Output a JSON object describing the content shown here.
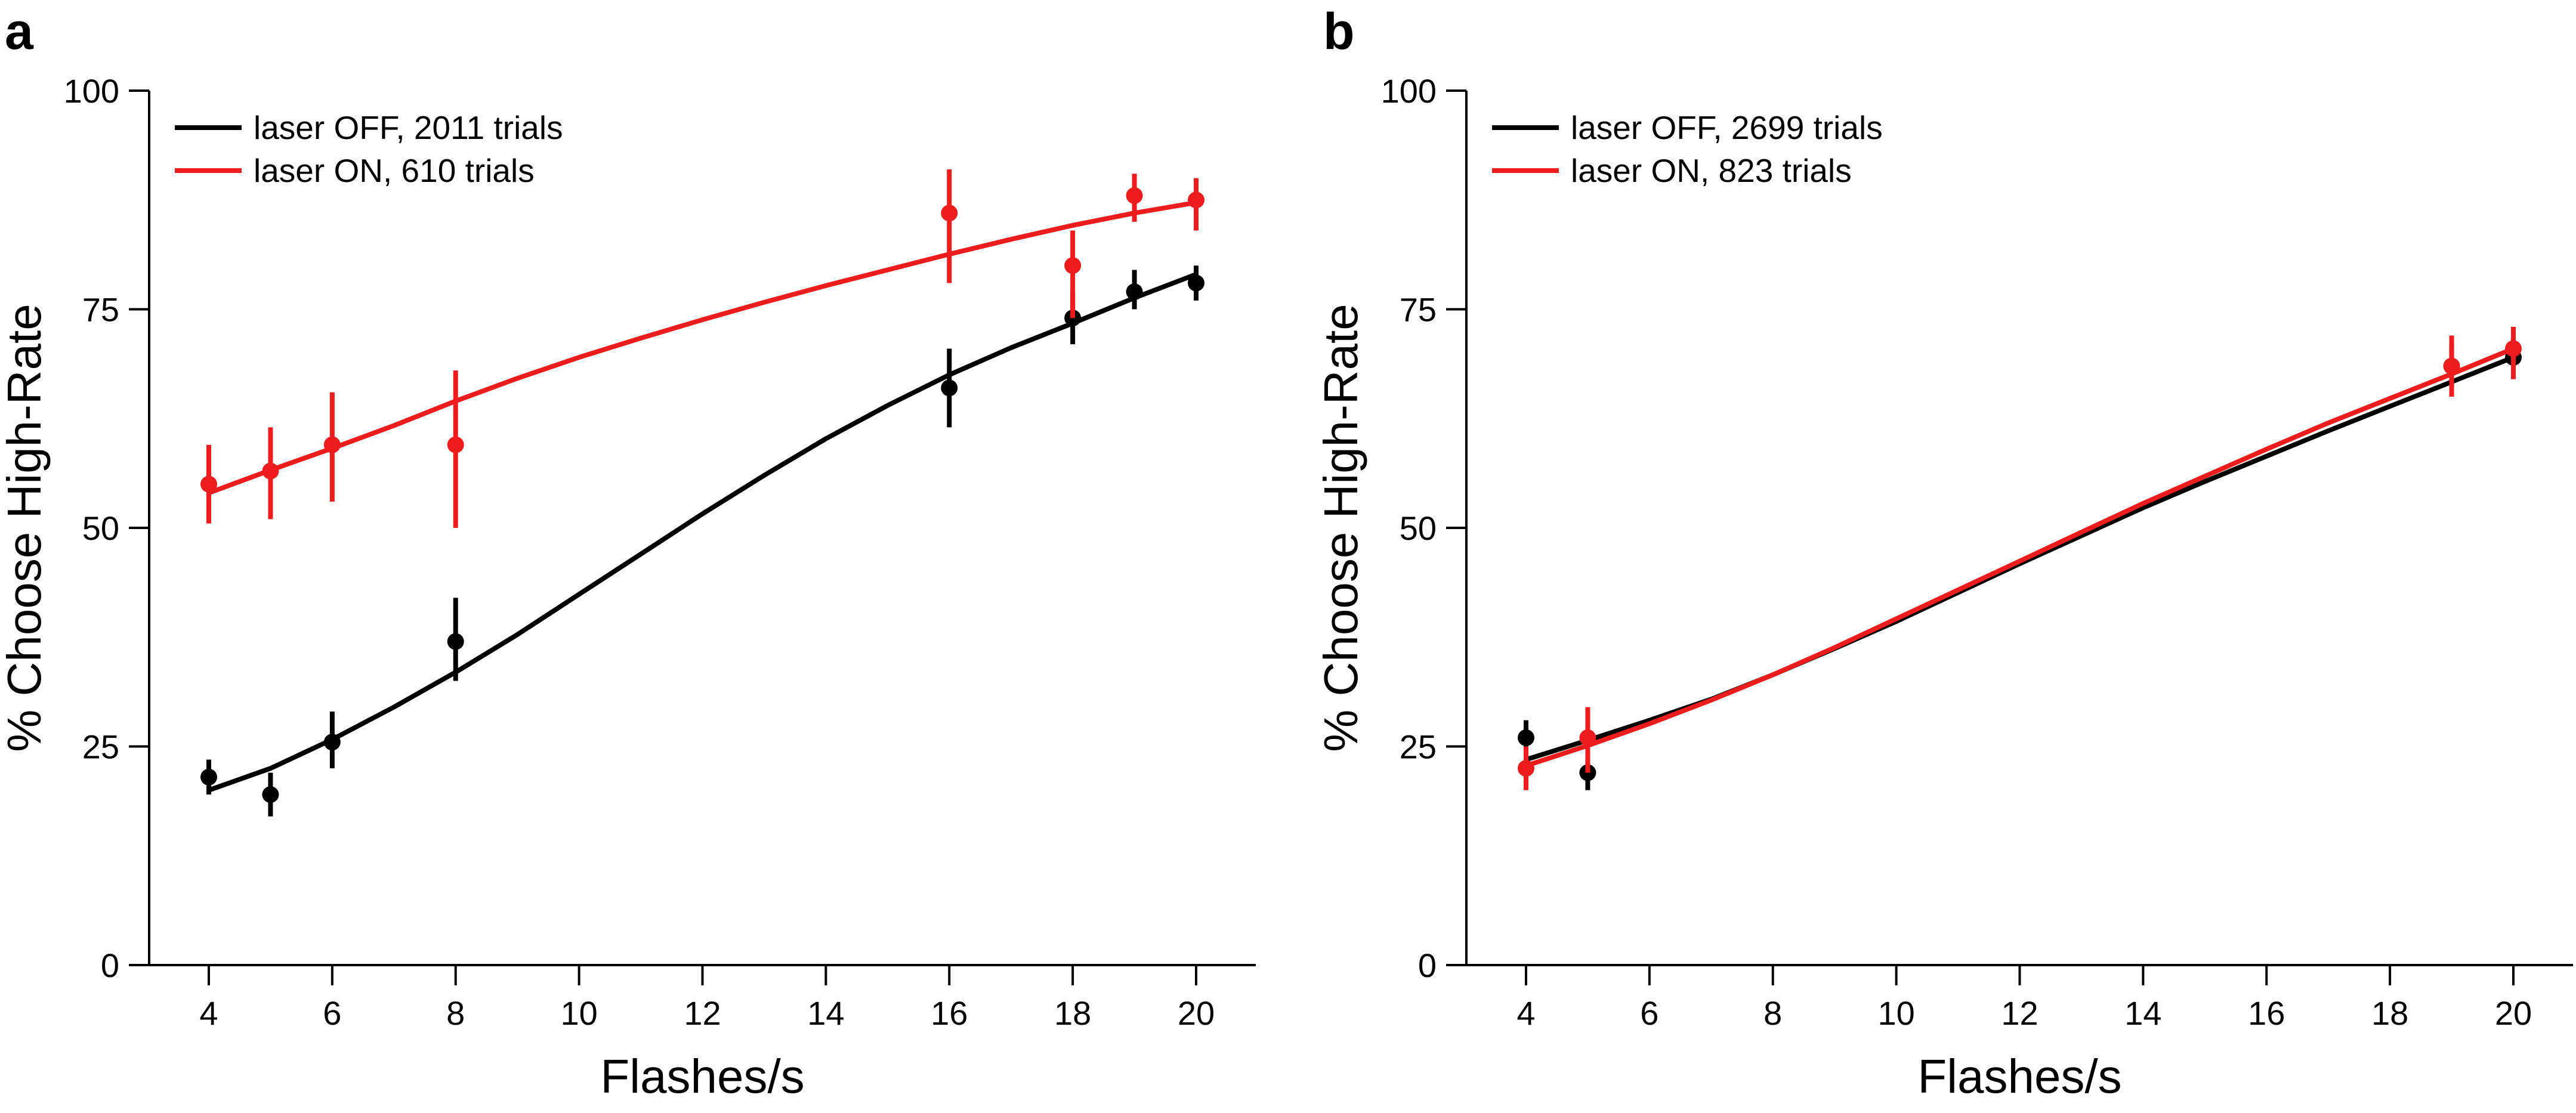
{
  "panels": [
    {
      "label": "a",
      "chart_data": {
        "type": "scatter",
        "xlabel": "Flashes/s",
        "ylabel": "% Choose High-Rate",
        "xlim": [
          3,
          21
        ],
        "ylim": [
          0,
          100
        ],
        "xticks": [
          4,
          6,
          8,
          10,
          12,
          14,
          16,
          18,
          20
        ],
        "yticks": [
          0,
          25,
          50,
          75,
          100
        ],
        "legend_position": "top-left",
        "series": [
          {
            "name": "laser OFF, 2011 trials",
            "color": "#000000",
            "points": [
              {
                "x": 4,
                "y": 21.5,
                "lo": 19.5,
                "hi": 23.5
              },
              {
                "x": 5,
                "y": 19.5,
                "lo": 17.0,
                "hi": 22.0
              },
              {
                "x": 6,
                "y": 25.5,
                "lo": 22.5,
                "hi": 29.0
              },
              {
                "x": 8,
                "y": 37.0,
                "lo": 32.5,
                "hi": 42.0
              },
              {
                "x": 16,
                "y": 66.0,
                "lo": 61.5,
                "hi": 70.5
              },
              {
                "x": 18,
                "y": 74.0,
                "lo": 71.0,
                "hi": 77.0
              },
              {
                "x": 19,
                "y": 77.0,
                "lo": 75.0,
                "hi": 79.5
              },
              {
                "x": 20,
                "y": 78.0,
                "lo": 76.0,
                "hi": 80.0
              }
            ],
            "fit": [
              [
                4,
                20.0
              ],
              [
                5,
                22.5
              ],
              [
                6,
                25.8
              ],
              [
                7,
                29.5
              ],
              [
                8,
                33.5
              ],
              [
                9,
                37.8
              ],
              [
                10,
                42.4
              ],
              [
                11,
                47.0
              ],
              [
                12,
                51.6
              ],
              [
                13,
                56.0
              ],
              [
                14,
                60.2
              ],
              [
                15,
                64.0
              ],
              [
                16,
                67.5
              ],
              [
                17,
                70.6
              ],
              [
                18,
                73.4
              ],
              [
                19,
                76.3
              ],
              [
                20,
                79.0
              ]
            ]
          },
          {
            "name": "laser ON, 610 trials",
            "color": "#ee1c1c",
            "points": [
              {
                "x": 4,
                "y": 55.0,
                "lo": 50.5,
                "hi": 59.5
              },
              {
                "x": 5,
                "y": 56.5,
                "lo": 51.0,
                "hi": 61.5
              },
              {
                "x": 6,
                "y": 59.5,
                "lo": 53.0,
                "hi": 65.5
              },
              {
                "x": 8,
                "y": 59.5,
                "lo": 50.0,
                "hi": 68.0
              },
              {
                "x": 16,
                "y": 86.0,
                "lo": 78.0,
                "hi": 91.0
              },
              {
                "x": 18,
                "y": 80.0,
                "lo": 74.0,
                "hi": 84.0
              },
              {
                "x": 19,
                "y": 88.0,
                "lo": 85.0,
                "hi": 90.5
              },
              {
                "x": 20,
                "y": 87.5,
                "lo": 84.0,
                "hi": 90.0
              }
            ],
            "fit": [
              [
                4,
                54.0
              ],
              [
                5,
                56.6
              ],
              [
                6,
                59.1
              ],
              [
                7,
                61.7
              ],
              [
                8,
                64.5
              ],
              [
                9,
                67.1
              ],
              [
                10,
                69.5
              ],
              [
                11,
                71.7
              ],
              [
                12,
                73.8
              ],
              [
                13,
                75.8
              ],
              [
                14,
                77.7
              ],
              [
                15,
                79.5
              ],
              [
                16,
                81.3
              ],
              [
                17,
                83.0
              ],
              [
                18,
                84.6
              ],
              [
                19,
                86.0
              ],
              [
                20,
                87.2
              ]
            ]
          }
        ]
      }
    },
    {
      "label": "b",
      "chart_data": {
        "type": "scatter",
        "xlabel": "Flashes/s",
        "ylabel": "% Choose High-Rate",
        "xlim": [
          3,
          21
        ],
        "ylim": [
          0,
          100
        ],
        "xticks": [
          4,
          6,
          8,
          10,
          12,
          14,
          16,
          18,
          20
        ],
        "yticks": [
          0,
          25,
          50,
          75,
          100
        ],
        "legend_position": "top-left",
        "series": [
          {
            "name": "laser OFF, 2699 trials",
            "color": "#000000",
            "points": [
              {
                "x": 4,
                "y": 26.0,
                "lo": 24.5,
                "hi": 28.0
              },
              {
                "x": 5,
                "y": 22.0,
                "lo": 20.0,
                "hi": 23.5
              },
              {
                "x": 19,
                "y": 68.5,
                "lo": 66.0,
                "hi": 71.0
              },
              {
                "x": 20,
                "y": 69.5,
                "lo": 67.5,
                "hi": 71.5
              }
            ],
            "fit": [
              [
                4,
                23.5
              ],
              [
                5,
                25.7
              ],
              [
                6,
                28.0
              ],
              [
                7,
                30.4
              ],
              [
                8,
                33.2
              ],
              [
                9,
                36.2
              ],
              [
                10,
                39.3
              ],
              [
                11,
                42.6
              ],
              [
                12,
                45.9
              ],
              [
                13,
                49.1
              ],
              [
                14,
                52.3
              ],
              [
                15,
                55.3
              ],
              [
                16,
                58.2
              ],
              [
                17,
                61.1
              ],
              [
                18,
                63.9
              ],
              [
                19,
                66.7
              ],
              [
                20,
                69.5
              ]
            ]
          },
          {
            "name": "laser ON, 823 trials",
            "color": "#ee1c1c",
            "points": [
              {
                "x": 4,
                "y": 22.5,
                "lo": 20.0,
                "hi": 25.0
              },
              {
                "x": 5,
                "y": 26.0,
                "lo": 22.0,
                "hi": 29.5
              },
              {
                "x": 19,
                "y": 68.5,
                "lo": 65.0,
                "hi": 72.0
              },
              {
                "x": 20,
                "y": 70.5,
                "lo": 67.0,
                "hi": 73.0
              }
            ],
            "fit": [
              [
                4,
                22.8
              ],
              [
                5,
                25.1
              ],
              [
                6,
                27.6
              ],
              [
                7,
                30.3
              ],
              [
                8,
                33.2
              ],
              [
                9,
                36.3
              ],
              [
                10,
                39.6
              ],
              [
                11,
                42.9
              ],
              [
                12,
                46.2
              ],
              [
                13,
                49.5
              ],
              [
                14,
                52.8
              ],
              [
                15,
                55.9
              ],
              [
                16,
                59.0
              ],
              [
                17,
                62.0
              ],
              [
                18,
                64.8
              ],
              [
                19,
                67.6
              ],
              [
                20,
                70.5
              ]
            ]
          }
        ]
      }
    }
  ]
}
